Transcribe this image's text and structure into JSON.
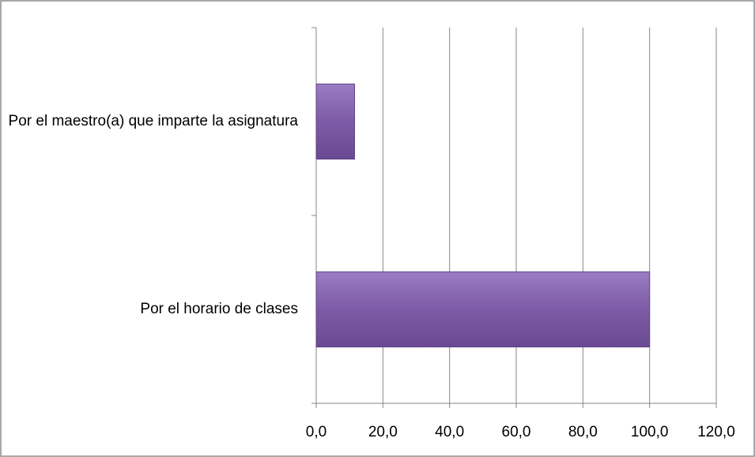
{
  "chart_data": {
    "type": "barh",
    "categories": [
      "Por el maestro(a) que imparte la asignatura",
      "Por el horario de clases"
    ],
    "values": [
      11.5,
      100
    ],
    "color": "#7e5ba6",
    "xlim": [
      0,
      120
    ],
    "xticks": [
      {
        "value": 0,
        "label": "0,0"
      },
      {
        "value": 20,
        "label": "20,0"
      },
      {
        "value": 40,
        "label": "40,0"
      },
      {
        "value": 60,
        "label": "60,0"
      },
      {
        "value": 80,
        "label": "80,0"
      },
      {
        "value": 100,
        "label": "100,0"
      },
      {
        "value": 120,
        "label": "120,0"
      }
    ],
    "grid": true
  }
}
